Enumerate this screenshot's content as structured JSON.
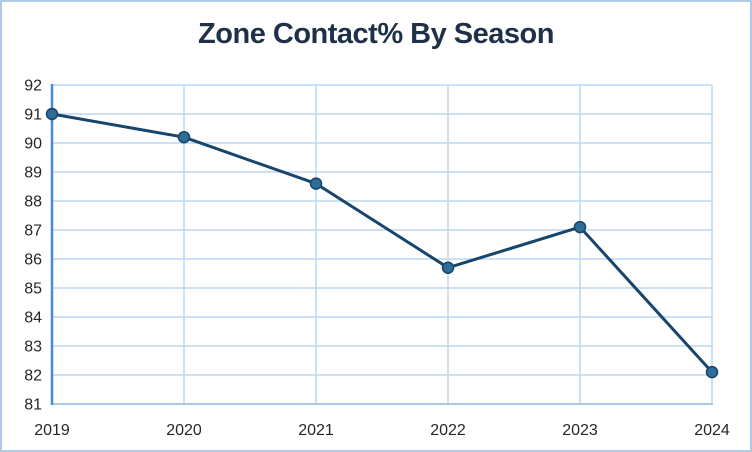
{
  "window": {
    "background_color": "#ffffff",
    "border_color": "#aecbea"
  },
  "chart_data": {
    "type": "line",
    "title": "Zone Contact% By Season",
    "xlabel": "",
    "ylabel": "",
    "categories": [
      "2019",
      "2020",
      "2021",
      "2022",
      "2023",
      "2024"
    ],
    "series": [
      {
        "name": "Zone Contact%",
        "values": [
          91.0,
          90.2,
          88.6,
          85.7,
          87.1,
          82.1
        ]
      }
    ],
    "y_ticks": [
      92,
      91,
      90,
      89,
      88,
      87,
      86,
      85,
      84,
      83,
      82,
      81
    ],
    "ylim": [
      81,
      92
    ],
    "grid": true,
    "legend": false,
    "markers": true,
    "colors": {
      "title": "#1f3148",
      "line": "#17456b",
      "marker_fill": "#2e6d96",
      "marker_stroke": "#17456b",
      "gridline": "#bdd7ee",
      "y_axis_line": "#4a89d8",
      "x_axis_line": "#a6c9e9",
      "tick_label": "#262626"
    }
  }
}
